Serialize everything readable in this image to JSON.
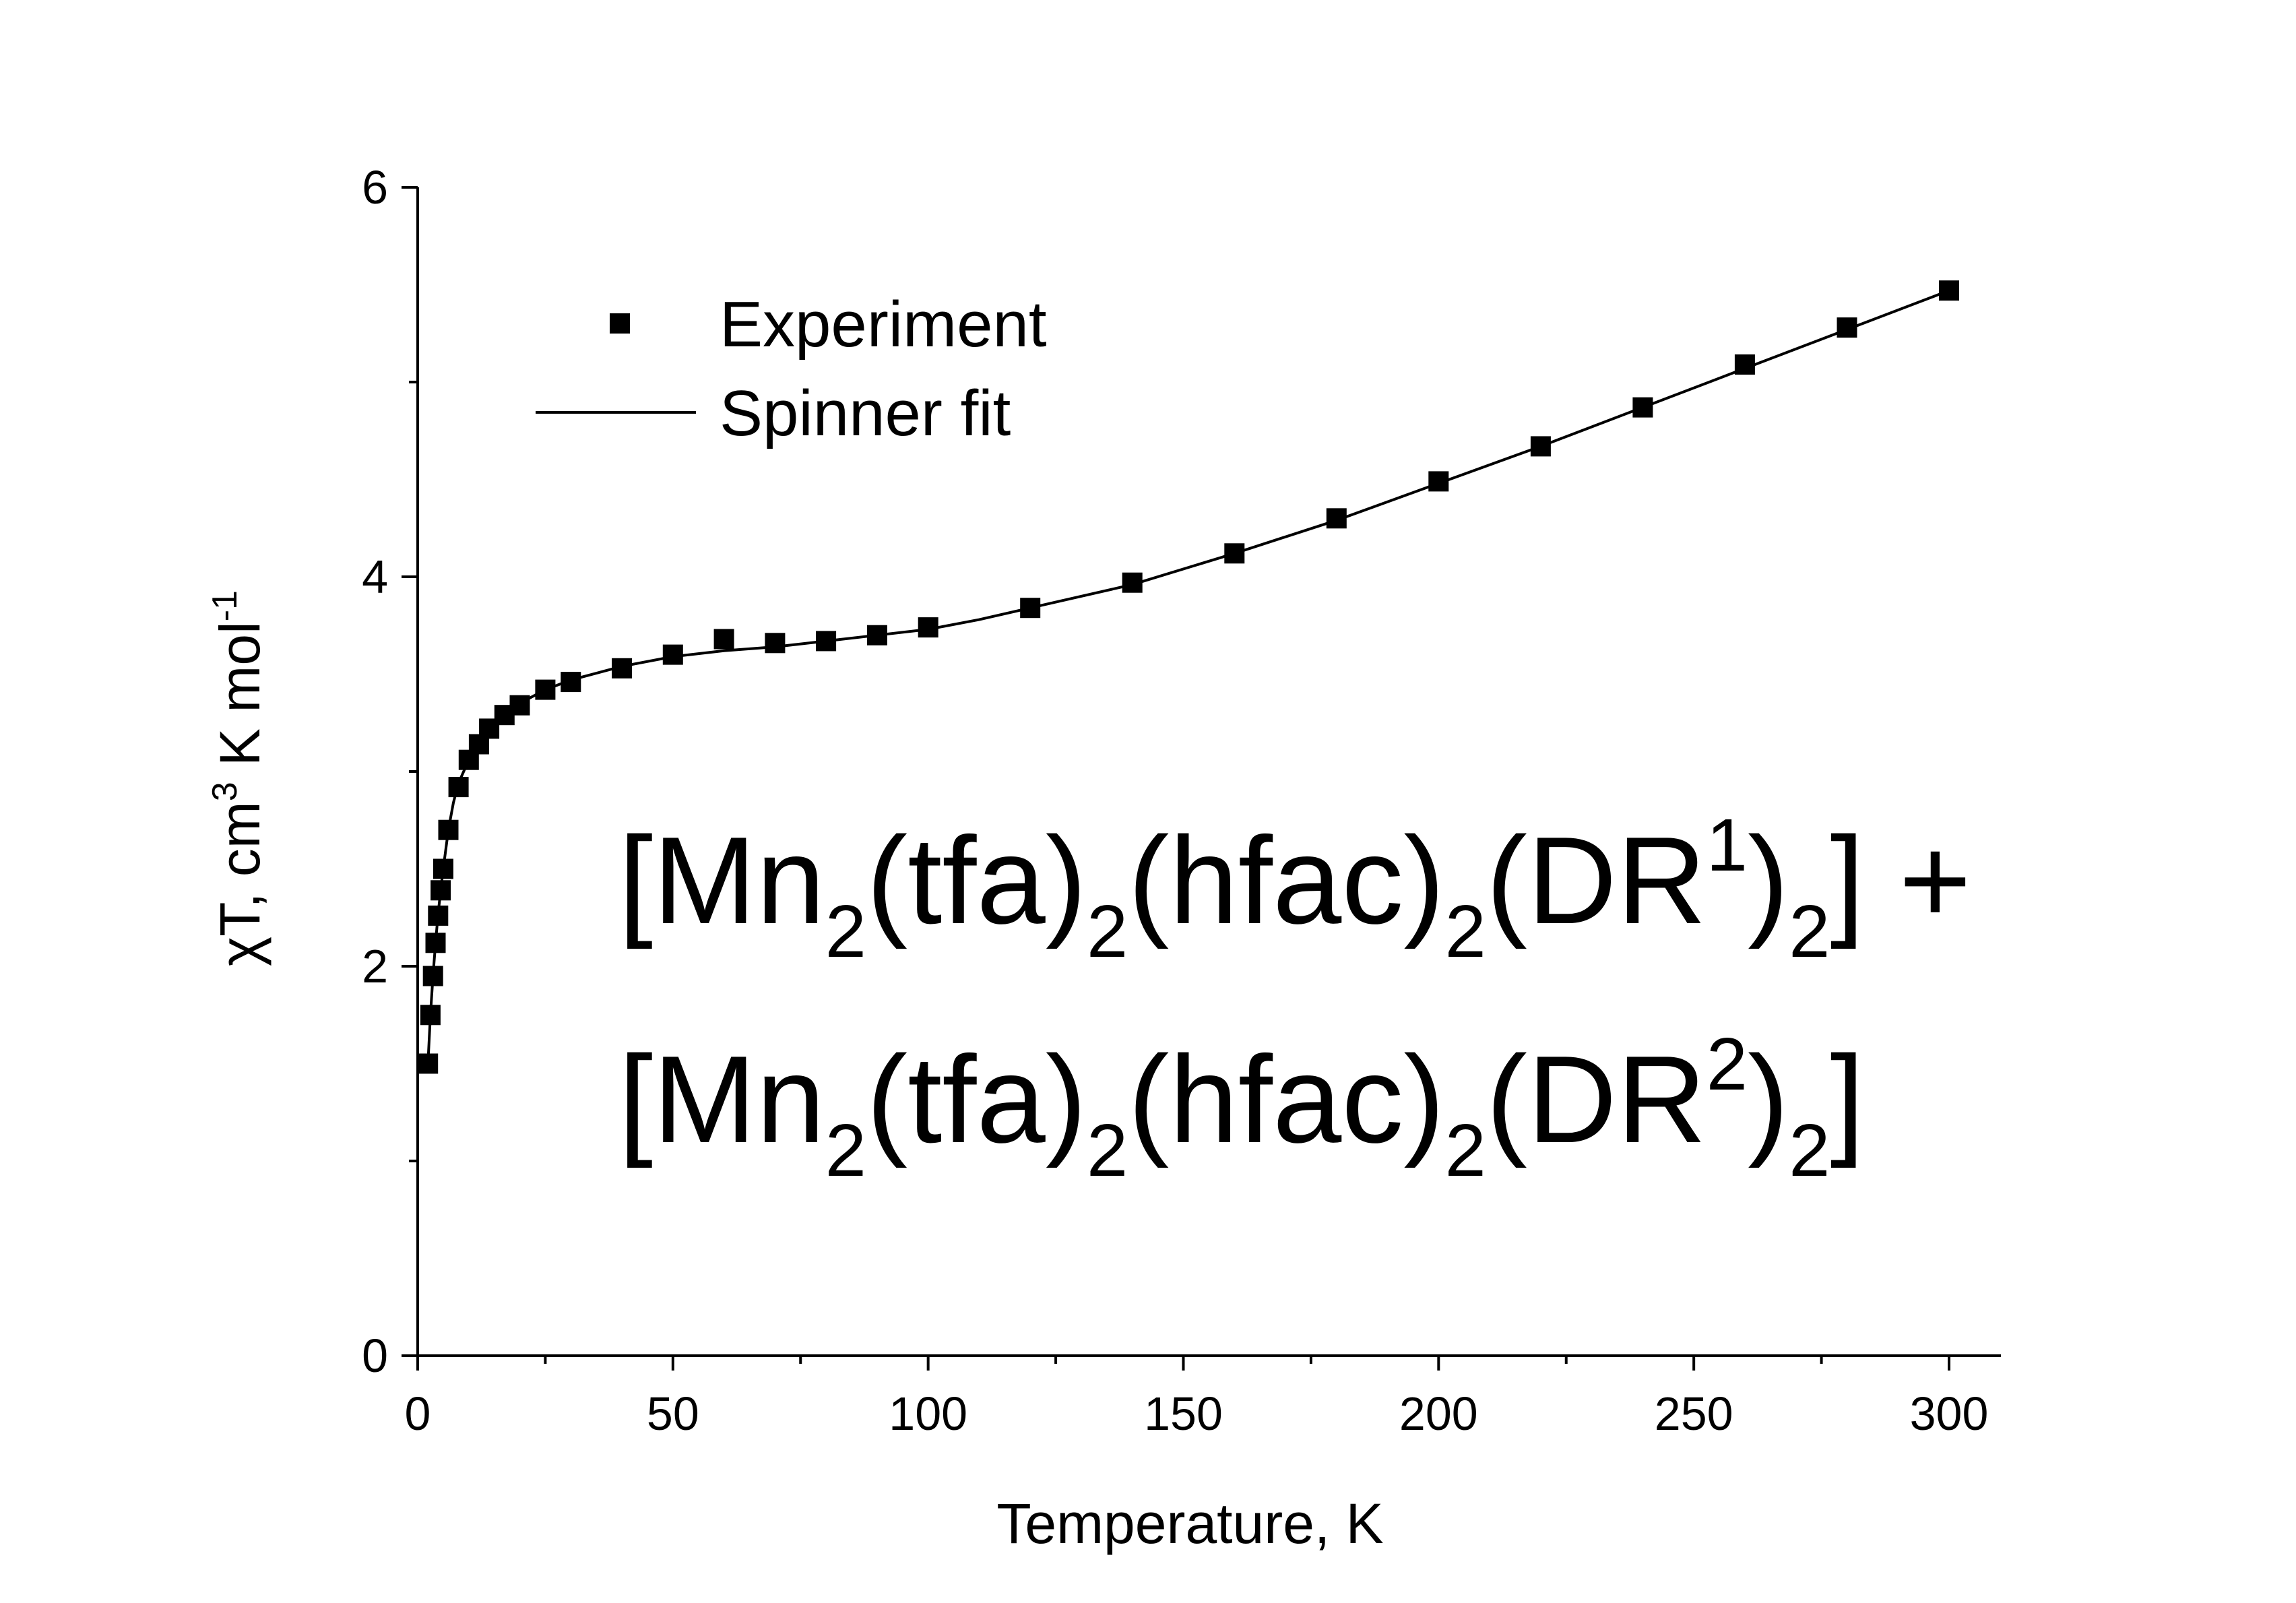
{
  "chart_data": {
    "type": "scatter",
    "xlabel": "Temperature, K",
    "ylabel": {
      "prefix": "χT, cm",
      "sup1": "3",
      "middle": " K mol",
      "sup2": "-1"
    },
    "xlim": [
      0,
      310
    ],
    "ylim": [
      0,
      6
    ],
    "x_ticks": [
      0,
      50,
      100,
      150,
      200,
      250,
      300
    ],
    "y_ticks": [
      0,
      2,
      4,
      6
    ],
    "x_tick_labels": [
      "0",
      "50",
      "100",
      "150",
      "200",
      "250",
      "300"
    ],
    "y_tick_labels": [
      "0",
      "2",
      "4",
      "6"
    ],
    "grid": false,
    "legend": {
      "position": "top-left",
      "entries": [
        {
          "label": "Experiment",
          "type": "marker"
        },
        {
          "label": "Spinner fit",
          "type": "line"
        }
      ]
    },
    "annotation": {
      "line1": [
        {
          "text": "[Mn"
        },
        {
          "text": "2",
          "sub": true
        },
        {
          "text": "(tfa)"
        },
        {
          "text": "2",
          "sub": true
        },
        {
          "text": "(hfac)"
        },
        {
          "text": "2",
          "sub": true
        },
        {
          "text": "(DR"
        },
        {
          "text": "1",
          "sup": true
        },
        {
          "text": ")"
        },
        {
          "text": "2",
          "sub": true
        },
        {
          "text": "] +"
        }
      ],
      "line2": [
        {
          "text": "[Mn"
        },
        {
          "text": "2",
          "sub": true
        },
        {
          "text": "(tfa)"
        },
        {
          "text": "2",
          "sub": true
        },
        {
          "text": "(hfac)"
        },
        {
          "text": "2",
          "sub": true
        },
        {
          "text": "(DR"
        },
        {
          "text": "2",
          "sup": true
        },
        {
          "text": ")"
        },
        {
          "text": "2",
          "sub": true
        },
        {
          "text": "]"
        }
      ]
    },
    "series": [
      {
        "name": "Experiment",
        "type": "scatter",
        "color": "#000000",
        "x": [
          2,
          2.5,
          3,
          3.5,
          4,
          4.5,
          5,
          6,
          8,
          10,
          12,
          14,
          17,
          20,
          25,
          30,
          40,
          50,
          60,
          70,
          80,
          90,
          100,
          120,
          140,
          160,
          180,
          200,
          220,
          240,
          260,
          280,
          300
        ],
        "y": [
          1.5,
          1.75,
          1.95,
          2.12,
          2.26,
          2.39,
          2.5,
          2.7,
          2.92,
          3.06,
          3.14,
          3.22,
          3.29,
          3.34,
          3.42,
          3.46,
          3.53,
          3.6,
          3.68,
          3.66,
          3.67,
          3.7,
          3.74,
          3.84,
          3.97,
          4.12,
          4.3,
          4.49,
          4.67,
          4.87,
          5.09,
          5.28,
          5.47
        ]
      },
      {
        "name": "Spinner fit",
        "type": "line",
        "color": "#000000",
        "x": [
          2,
          2.5,
          3,
          3.5,
          4,
          4.5,
          5,
          6,
          7,
          8,
          10,
          12,
          14,
          17,
          20,
          25,
          30,
          40,
          50,
          60,
          70,
          80,
          90,
          100,
          110,
          120,
          140,
          160,
          180,
          200,
          220,
          240,
          260,
          280,
          300
        ],
        "y": [
          1.5,
          1.75,
          1.95,
          2.12,
          2.27,
          2.39,
          2.5,
          2.7,
          2.84,
          2.94,
          3.06,
          3.15,
          3.22,
          3.29,
          3.35,
          3.42,
          3.47,
          3.54,
          3.59,
          3.62,
          3.64,
          3.67,
          3.7,
          3.73,
          3.78,
          3.84,
          3.96,
          4.12,
          4.29,
          4.48,
          4.67,
          4.87,
          5.07,
          5.27,
          5.47
        ]
      }
    ]
  }
}
